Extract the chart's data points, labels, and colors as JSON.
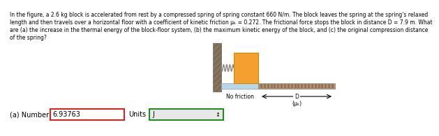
{
  "text_line1": "In the figure, a 2.6 kg block is accelerated from rest by a compressed spring of spring constant 660 N/m. The block leaves the spring at the spring's relaxed",
  "text_line2": "length and then travels over a horizontal floor with a coefficient of kinetic friction μₖ = 0.272. The frictional force stops the block in distance D = 7.9 m. What",
  "text_line3": "are (a) the increase in the thermal energy of the block-floor system, (b) the maximum kinetic energy of the block, and (c) the original compression distance",
  "text_line4": "of the spring?",
  "answer_label": "(a) Number",
  "answer_value": "6.93763",
  "units_label": "Units",
  "units_value": "J",
  "wall_hatch_color": "#8B7355",
  "wall_face_color": "#C8A882",
  "block_color": "#F4A030",
  "block_edge_color": "#CC8800",
  "floor_nofric_color": "#B8D8E8",
  "floor_fric_color": "#B09070",
  "floor_fric_dot_color": "#7A5A40",
  "no_friction_label": "No friction",
  "D_label": "D",
  "mu_label": "(μₖ)",
  "answer_box_color": "#DD2222",
  "units_box_color": "#228B22",
  "units_bg_color": "#E8E8E8",
  "arrow_color": "black",
  "text_fontsize": 5.5,
  "answer_fontsize": 7.0
}
